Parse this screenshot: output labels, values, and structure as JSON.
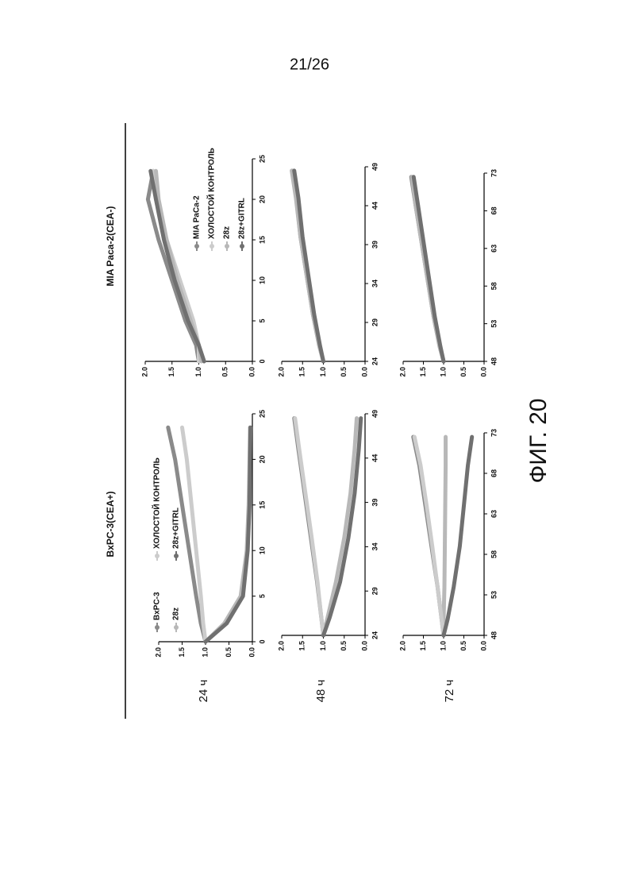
{
  "page_number": "21/26",
  "figure_label": "ФИГ. 20",
  "columns": [
    "BxPC-3(CEA+)",
    "MIA Paca-2(CEA-)"
  ],
  "rows": [
    "24 ч",
    "48 ч",
    "72 ч"
  ],
  "chart_data": [
    {
      "type": "line",
      "x": [
        0,
        2,
        5,
        10,
        15,
        20,
        23.5
      ],
      "xlim": [
        0,
        25
      ],
      "xticks": [
        0,
        5,
        10,
        15,
        20,
        25
      ],
      "ylim": [
        0,
        2
      ],
      "yticks": [
        {
          "value": 0,
          "label": "0.0"
        },
        0.5,
        {
          "value": 1,
          "label": "1.0"
        },
        1.5,
        {
          "value": 2,
          "label": "2.0"
        }
      ],
      "series": [
        {
          "name": "BxPC-3",
          "color": "#8a8a8a",
          "values": [
            1.0,
            1.1,
            1.2,
            1.35,
            1.5,
            1.65,
            1.8
          ]
        },
        {
          "name": "28z",
          "color": "#b8b8b8",
          "values": [
            1.0,
            0.6,
            0.25,
            0.12,
            0.08,
            0.06,
            0.05
          ]
        },
        {
          "name": "ХОЛОСТОЙ КОНТРОЛЬ",
          "color": "#cccccc",
          "values": [
            1.0,
            1.05,
            1.1,
            1.2,
            1.3,
            1.4,
            1.5
          ]
        },
        {
          "name": "28z+GITRL",
          "color": "#707070",
          "values": [
            1.0,
            0.55,
            0.2,
            0.1,
            0.06,
            0.05,
            0.04
          ]
        }
      ]
    },
    {
      "type": "line",
      "x": [
        24,
        26,
        30,
        35,
        40,
        45,
        48.5
      ],
      "xlim": [
        24,
        49
      ],
      "xticks": [
        24,
        29,
        34,
        39,
        44,
        49
      ],
      "ylim": [
        0,
        2
      ],
      "yticks": [
        {
          "value": 0,
          "label": "0.0"
        },
        0.5,
        {
          "value": 1,
          "label": "1.0"
        },
        1.5,
        {
          "value": 2,
          "label": "2.0"
        }
      ],
      "series": [
        {
          "color": "#8a8a8a",
          "values": [
            1.0,
            1.05,
            1.15,
            1.3,
            1.45,
            1.6,
            1.7
          ]
        },
        {
          "color": "#b8b8b8",
          "values": [
            1.0,
            0.9,
            0.7,
            0.5,
            0.35,
            0.25,
            0.2
          ]
        },
        {
          "color": "#cccccc",
          "values": [
            1.0,
            1.05,
            1.14,
            1.28,
            1.43,
            1.58,
            1.68
          ]
        },
        {
          "color": "#707070",
          "values": [
            1.0,
            0.85,
            0.6,
            0.4,
            0.25,
            0.15,
            0.1
          ]
        }
      ]
    },
    {
      "type": "line",
      "x": [
        48,
        50,
        54,
        59,
        64,
        69,
        72.5
      ],
      "xlim": [
        48,
        73
      ],
      "xticks": [
        48,
        53,
        58,
        63,
        68,
        73
      ],
      "ylim": [
        0,
        2
      ],
      "yticks": [
        {
          "value": 0,
          "label": "0.0"
        },
        0.5,
        {
          "value": 1,
          "label": "1.0"
        },
        1.5,
        {
          "value": 2,
          "label": "2.0"
        }
      ],
      "series": [
        {
          "color": "#8a8a8a",
          "values": [
            1.0,
            1.05,
            1.15,
            1.3,
            1.45,
            1.6,
            1.75
          ]
        },
        {
          "color": "#b8b8b8",
          "values": [
            1.0,
            1.0,
            0.98,
            0.97,
            0.96,
            0.95,
            0.95
          ]
        },
        {
          "color": "#cccccc",
          "values": [
            1.0,
            1.05,
            1.15,
            1.28,
            1.42,
            1.57,
            1.72
          ]
        },
        {
          "color": "#707070",
          "values": [
            1.0,
            0.9,
            0.75,
            0.6,
            0.5,
            0.4,
            0.3
          ]
        }
      ]
    },
    {
      "type": "line",
      "x": [
        0,
        2,
        5,
        10,
        15,
        20,
        23.5
      ],
      "xlim": [
        0,
        25
      ],
      "xticks": [
        0,
        5,
        10,
        15,
        20,
        25
      ],
      "ylim": [
        0,
        2
      ],
      "yticks": [
        {
          "value": 0,
          "label": "0.0"
        },
        0.5,
        {
          "value": 1,
          "label": "1.0"
        },
        1.5,
        {
          "value": 2,
          "label": "2.0"
        }
      ],
      "series": [
        {
          "name": "MIA PaCa-2",
          "color": "#8a8a8a",
          "values": [
            1.0,
            1.05,
            1.25,
            1.5,
            1.75,
            1.95,
            1.85
          ]
        },
        {
          "name": "ХОЛОСТОЙ КОНТРОЛЬ",
          "color": "#cccccc",
          "values": [
            1.0,
            1.0,
            1.1,
            1.35,
            1.6,
            1.8,
            1.85
          ]
        },
        {
          "name": "28z",
          "color": "#b8b8b8",
          "values": [
            0.95,
            1.0,
            1.15,
            1.4,
            1.6,
            1.75,
            1.8
          ]
        },
        {
          "name": "28z+GITRL",
          "color": "#707070",
          "values": [
            0.9,
            1.0,
            1.2,
            1.45,
            1.65,
            1.8,
            1.9
          ]
        }
      ]
    },
    {
      "type": "line",
      "x": [
        24,
        26,
        30,
        35,
        40,
        45,
        48.5
      ],
      "xlim": [
        24,
        49
      ],
      "xticks": [
        24,
        29,
        34,
        39,
        44,
        49
      ],
      "ylim": [
        0,
        2
      ],
      "yticks": [
        {
          "value": 0,
          "label": "0.0"
        },
        0.5,
        {
          "value": 1,
          "label": "1.0"
        },
        1.5,
        {
          "value": 2,
          "label": "2.0"
        }
      ],
      "series": [
        {
          "color": "#8a8a8a",
          "values": [
            1.0,
            1.1,
            1.25,
            1.4,
            1.55,
            1.65,
            1.75
          ]
        },
        {
          "color": "#cccccc",
          "values": [
            1.0,
            1.1,
            1.24,
            1.38,
            1.52,
            1.63,
            1.72
          ]
        },
        {
          "color": "#b8b8b8",
          "values": [
            1.0,
            1.1,
            1.25,
            1.4,
            1.55,
            1.66,
            1.76
          ]
        },
        {
          "color": "#707070",
          "values": [
            1.0,
            1.08,
            1.22,
            1.36,
            1.5,
            1.6,
            1.7
          ]
        }
      ]
    },
    {
      "type": "line",
      "x": [
        48,
        50,
        54,
        59,
        64,
        69,
        72.5
      ],
      "xlim": [
        48,
        73
      ],
      "xticks": [
        48,
        53,
        58,
        63,
        68,
        73
      ],
      "ylim": [
        0,
        2
      ],
      "yticks": [
        {
          "value": 0,
          "label": "0.0"
        },
        0.5,
        {
          "value": 1,
          "label": "1.0"
        },
        1.5,
        {
          "value": 2,
          "label": "2.0"
        }
      ],
      "series": [
        {
          "color": "#8a8a8a",
          "values": [
            1.0,
            1.1,
            1.25,
            1.4,
            1.55,
            1.7,
            1.8
          ]
        },
        {
          "color": "#cccccc",
          "values": [
            1.0,
            1.1,
            1.24,
            1.38,
            1.52,
            1.66,
            1.76
          ]
        },
        {
          "color": "#b8b8b8",
          "values": [
            1.0,
            1.1,
            1.25,
            1.4,
            1.55,
            1.7,
            1.78
          ]
        },
        {
          "color": "#707070",
          "values": [
            1.0,
            1.08,
            1.22,
            1.36,
            1.5,
            1.64,
            1.74
          ]
        }
      ]
    }
  ]
}
